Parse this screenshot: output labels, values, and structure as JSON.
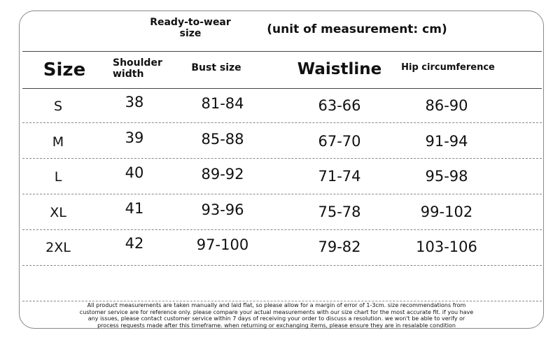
{
  "header": {
    "title": "Ready-to-wear size",
    "unit": "(unit of measurement: cm)"
  },
  "table": {
    "columns": [
      "Size",
      "Shoulder width",
      "Bust size",
      "Waistline",
      "Hip circumference"
    ],
    "rows": [
      [
        "S",
        "38",
        "81-84",
        "63-66",
        "86-90"
      ],
      [
        "M",
        "39",
        "85-88",
        "67-70",
        "91-94"
      ],
      [
        "L",
        "40",
        "89-92",
        "71-74",
        "95-98"
      ],
      [
        "XL",
        "41",
        "93-96",
        "75-78",
        "99-102"
      ],
      [
        "2XL",
        "42",
        "97-100",
        "79-82",
        "103-106"
      ]
    ]
  },
  "footer": {
    "lines": [
      "All product measurements are taken manually and laid flat, so please allow for a margin of error of 1-3cm. size recommendations from",
      "customer service are for reference only. please compare your actual measurements with our size chart for the most accurate fit. if you have",
      "any issues, please contact customer service within 7 days of receiving your order to discuss a resolution. we won't be able to verify or",
      "process requests made after this timeframe. when returning or exchanging items, please ensure they are in resalable condition"
    ]
  }
}
